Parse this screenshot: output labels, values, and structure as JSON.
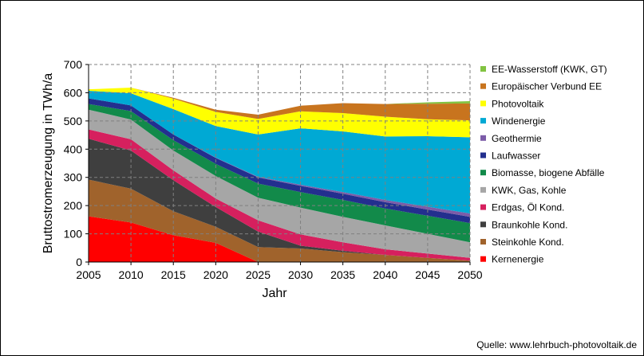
{
  "chart_data": {
    "type": "area",
    "stacked": true,
    "xlabel": "Jahr",
    "ylabel": "Bruttostromerzeugung  in TWh/a",
    "xlim": [
      2005,
      2050
    ],
    "ylim": [
      0,
      700
    ],
    "xticks": [
      2005,
      2010,
      2015,
      2020,
      2025,
      2030,
      2035,
      2040,
      2045,
      2050
    ],
    "yticks": [
      0,
      100,
      200,
      300,
      400,
      500,
      600,
      700
    ],
    "grid": true,
    "legend_position": "right",
    "x": [
      2005,
      2010,
      2015,
      2020,
      2025,
      2030,
      2035,
      2040,
      2045,
      2050
    ],
    "series": [
      {
        "name": "Kernenergie",
        "color": "#ff0000",
        "values": [
          162,
          140,
          95,
          68,
          0,
          0,
          0,
          0,
          0,
          0
        ]
      },
      {
        "name": "Steinkohle Kond.",
        "color": "#a0632c",
        "values": [
          130,
          120,
          85,
          57,
          53,
          48,
          35,
          25,
          15,
          5
        ]
      },
      {
        "name": "Braunkohle Kond.",
        "color": "#3f3f3f",
        "values": [
          145,
          135,
          110,
          70,
          55,
          10,
          5,
          0,
          0,
          0
        ]
      },
      {
        "name": "Erdgas, Öl Kond.",
        "color": "#d6205e",
        "values": [
          33,
          40,
          35,
          30,
          40,
          40,
          30,
          20,
          15,
          10
        ]
      },
      {
        "name": "KWK, Gas, Kohle",
        "color": "#a6a6a6",
        "values": [
          70,
          70,
          70,
          80,
          80,
          95,
          90,
          85,
          70,
          55
        ]
      },
      {
        "name": "Biomasse, biogene Abfälle",
        "color": "#128a4a",
        "values": [
          20,
          30,
          37,
          43,
          50,
          55,
          60,
          60,
          64,
          68
        ]
      },
      {
        "name": "Laufwasser",
        "color": "#232f8e",
        "values": [
          20,
          20,
          20,
          21,
          22,
          22,
          22,
          22,
          22,
          22
        ]
      },
      {
        "name": "Geothermie",
        "color": "#7c5ca8",
        "values": [
          0,
          0,
          0,
          1,
          2,
          4,
          6,
          8,
          10,
          12
        ]
      },
      {
        "name": "Windenergie",
        "color": "#00a9d4",
        "values": [
          27,
          43,
          90,
          112,
          150,
          200,
          215,
          225,
          250,
          270
        ]
      },
      {
        "name": "Photovoltaik",
        "color": "#ffff00",
        "values": [
          5,
          20,
          37,
          50,
          55,
          60,
          65,
          70,
          60,
          60
        ]
      },
      {
        "name": "Europäischer Verbund EE",
        "color": "#c8741e",
        "values": [
          0,
          0,
          3,
          8,
          15,
          20,
          35,
          45,
          55,
          60
        ]
      },
      {
        "name": "EE-Wasserstoff (KWK, GT)",
        "color": "#82c341",
        "values": [
          0,
          0,
          0,
          0,
          0,
          0,
          0,
          0,
          5,
          8
        ]
      }
    ]
  },
  "source_text": "Quelle: www.lehrbuch-photovoltaik.de"
}
